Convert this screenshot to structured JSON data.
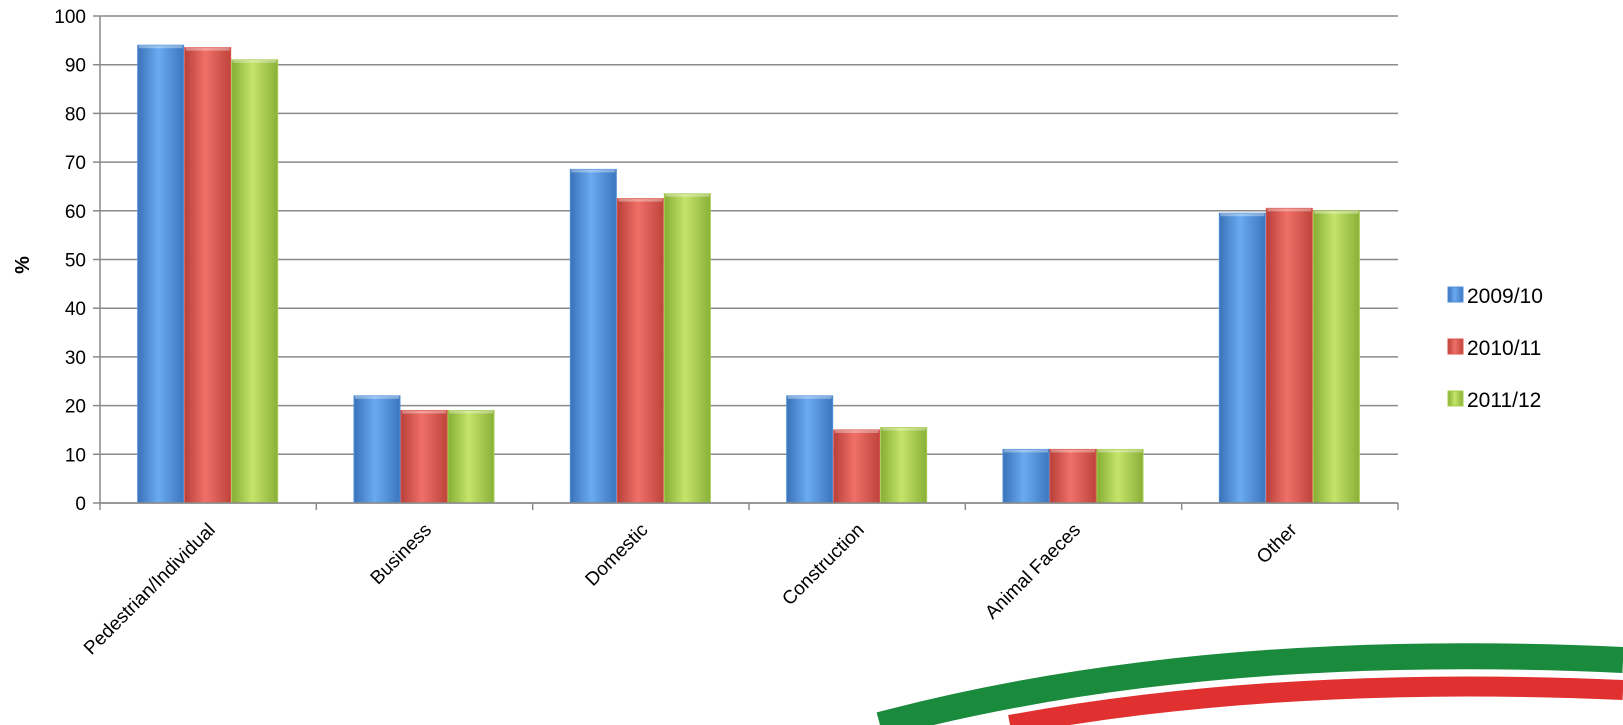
{
  "chart_data": {
    "type": "bar",
    "categories": [
      "Pedestrian/Individual",
      "Business",
      "Domestic",
      "Construction",
      "Animal Faeces",
      "Other"
    ],
    "series": [
      {
        "name": "2009/10",
        "values": [
          94,
          22,
          68.5,
          22,
          11,
          59.5
        ],
        "color": "#4f8fd9"
      },
      {
        "name": "2010/11",
        "values": [
          93.5,
          19,
          62.5,
          15,
          11,
          60.5
        ],
        "color": "#d9534a"
      },
      {
        "name": "2011/12",
        "values": [
          91,
          19,
          63.5,
          15.5,
          11,
          60
        ],
        "color": "#a6cc4c"
      }
    ],
    "title": "",
    "xlabel": "",
    "ylabel": "%",
    "ylim": [
      0,
      100
    ],
    "yticks": [
      0,
      10,
      20,
      30,
      40,
      50,
      60,
      70,
      80,
      90,
      100
    ],
    "grid": true,
    "legend_position": "right"
  },
  "decoration": {
    "arc_colors": [
      "#1a8a3c",
      "#e03030"
    ]
  }
}
